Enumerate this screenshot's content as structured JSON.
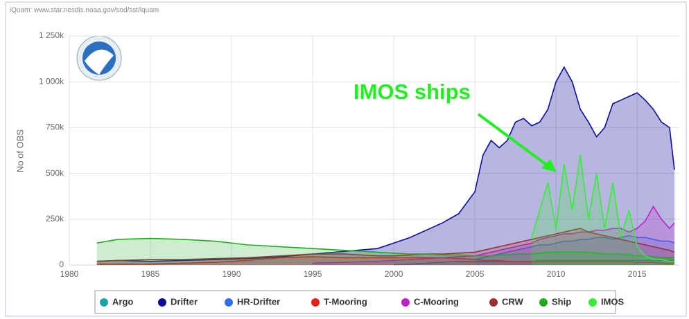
{
  "chart_data": {
    "type": "area",
    "source": "iQuam: www.star.nesdis.noaa.gov/sod/sst/iquam",
    "y_label": "No of OBS",
    "annotation": "IMOS ships",
    "xlim": [
      1980,
      2017.6
    ],
    "xticks": [
      1980,
      1985,
      1990,
      1995,
      2000,
      2005,
      2010,
      2015
    ],
    "ylim": [
      0,
      1250000
    ],
    "yticks": [
      0,
      {
        "value": 250000,
        "label": "250k"
      },
      {
        "value": 500000,
        "label": "500k"
      },
      {
        "value": 750000,
        "label": "750k"
      },
      {
        "value": 1000000,
        "label": "1 000k"
      },
      {
        "value": 1250000,
        "label": "1 250k"
      }
    ],
    "grid": true,
    "legend": "bottom",
    "x": [
      1981.7,
      1983,
      1985,
      1987,
      1989,
      1991,
      1993,
      1995,
      1997,
      1999,
      2000,
      2001,
      2002,
      2003,
      2004,
      2005,
      2005.5,
      2006,
      2006.5,
      2007,
      2007.5,
      2008,
      2008.5,
      2009,
      2009.5,
      2010,
      2010.5,
      2011,
      2011.5,
      2012,
      2012.5,
      2013,
      2013.5,
      2014,
      2014.5,
      2015,
      2015.5,
      2016,
      2016.5,
      2017,
      2017.3
    ],
    "series": [
      {
        "name": "Argo",
        "color": "#1fa3a3",
        "values": [
          null,
          null,
          null,
          null,
          null,
          null,
          null,
          null,
          null,
          null,
          2000,
          5000,
          10000,
          15000,
          20000,
          20000,
          20000,
          20000,
          20000,
          20000,
          20000,
          20000,
          20000,
          25000,
          25000,
          25000,
          25000,
          25000,
          25000,
          25000,
          25000,
          25000,
          25000,
          25000,
          25000,
          25000,
          25000,
          25000,
          25000,
          25000,
          25000
        ]
      },
      {
        "name": "Drifter",
        "color": "#0c0c9c",
        "values": [
          20000,
          25000,
          20000,
          25000,
          30000,
          35000,
          45000,
          60000,
          75000,
          90000,
          120000,
          150000,
          190000,
          230000,
          280000,
          400000,
          600000,
          680000,
          640000,
          680000,
          780000,
          800000,
          760000,
          780000,
          850000,
          1000000,
          1080000,
          1000000,
          850000,
          780000,
          700000,
          750000,
          880000,
          900000,
          920000,
          940000,
          900000,
          850000,
          780000,
          750000,
          520000
        ]
      },
      {
        "name": "HR-Drifter",
        "color": "#2f6ee8",
        "values": [
          null,
          null,
          null,
          null,
          null,
          null,
          null,
          null,
          null,
          null,
          null,
          null,
          null,
          null,
          null,
          30000,
          40000,
          50000,
          60000,
          70000,
          80000,
          90000,
          100000,
          110000,
          110000,
          120000,
          130000,
          130000,
          140000,
          140000,
          150000,
          150000,
          140000,
          150000,
          160000,
          150000,
          150000,
          140000,
          130000,
          130000,
          120000
        ]
      },
      {
        "name": "T-Mooring",
        "color": "#e8201a",
        "values": [
          5000,
          5000,
          5000,
          10000,
          15000,
          25000,
          40000,
          45000,
          40000,
          40000,
          40000,
          40000,
          40000,
          40000,
          35000,
          30000,
          25000,
          25000,
          25000,
          20000,
          20000,
          20000,
          20000,
          20000,
          20000,
          20000,
          20000,
          20000,
          20000,
          20000,
          20000,
          20000,
          20000,
          20000,
          20000,
          15000,
          15000,
          15000,
          10000,
          10000,
          10000
        ]
      },
      {
        "name": "C-Mooring",
        "color": "#c020c8",
        "values": [
          null,
          null,
          null,
          null,
          null,
          null,
          null,
          10000,
          15000,
          20000,
          25000,
          30000,
          35000,
          40000,
          45000,
          50000,
          60000,
          70000,
          80000,
          90000,
          100000,
          110000,
          120000,
          140000,
          150000,
          160000,
          170000,
          170000,
          180000,
          180000,
          190000,
          190000,
          200000,
          200000,
          180000,
          200000,
          240000,
          320000,
          250000,
          200000,
          230000
        ]
      },
      {
        "name": "CRW",
        "color": "#9c3030",
        "values": [
          20000,
          25000,
          30000,
          30000,
          35000,
          40000,
          50000,
          60000,
          60000,
          50000,
          50000,
          55000,
          60000,
          60000,
          65000,
          70000,
          80000,
          90000,
          100000,
          110000,
          120000,
          130000,
          140000,
          150000,
          160000,
          170000,
          180000,
          190000,
          200000,
          180000,
          170000,
          160000,
          150000,
          140000,
          130000,
          120000,
          110000,
          100000,
          90000,
          80000,
          70000
        ]
      },
      {
        "name": "Ship",
        "color": "#22aa22",
        "values": [
          120000,
          140000,
          145000,
          140000,
          130000,
          110000,
          100000,
          90000,
          80000,
          70000,
          65000,
          60000,
          60000,
          55000,
          55000,
          50000,
          50000,
          50000,
          55000,
          55000,
          60000,
          60000,
          60000,
          65000,
          70000,
          70000,
          70000,
          70000,
          70000,
          70000,
          65000,
          60000,
          60000,
          60000,
          55000,
          50000,
          50000,
          45000,
          40000,
          40000,
          40000
        ]
      },
      {
        "name": "IMOS",
        "color": "#33ee33",
        "values": [
          null,
          null,
          null,
          null,
          null,
          null,
          null,
          null,
          null,
          null,
          null,
          null,
          null,
          null,
          null,
          null,
          null,
          null,
          null,
          null,
          null,
          null,
          150000,
          300000,
          450000,
          200000,
          550000,
          300000,
          600000,
          250000,
          500000,
          200000,
          450000,
          150000,
          300000,
          100000,
          50000,
          30000,
          30000,
          20000,
          20000
        ]
      }
    ]
  }
}
